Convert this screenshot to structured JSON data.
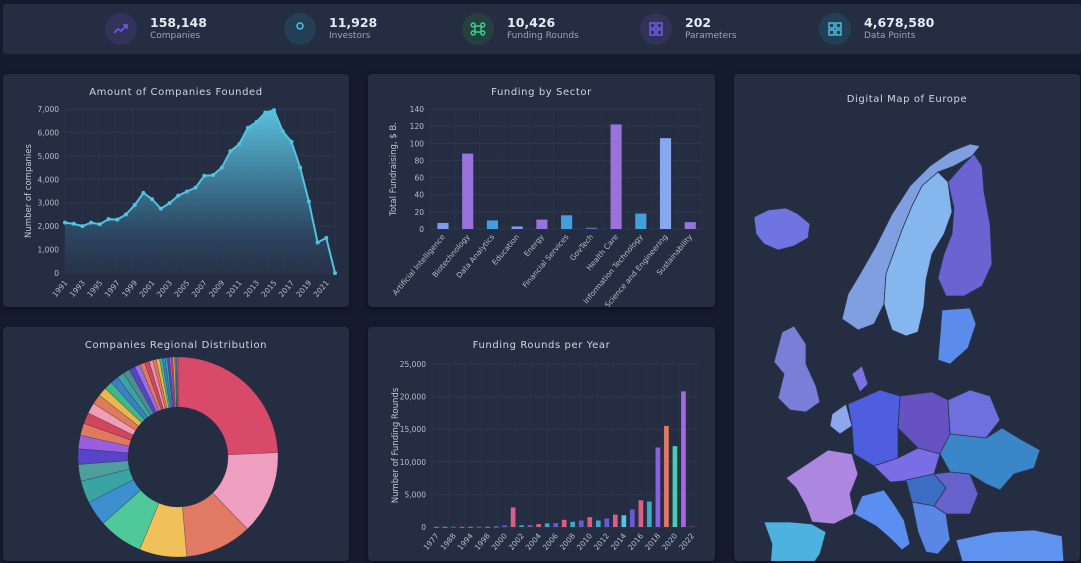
{
  "stats": [
    {
      "value": "158,148",
      "label": "Companies",
      "icon": "trending-up-icon",
      "color": "#6c5ce7",
      "bg": "#33325a"
    },
    {
      "value": "11,928",
      "label": "Investors",
      "icon": "user-icon",
      "color": "#4fc3e0",
      "bg": "#223f55"
    },
    {
      "value": "10,426",
      "label": "Funding Rounds",
      "icon": "command-icon",
      "color": "#3ecf8e",
      "bg": "#23413e"
    },
    {
      "value": "202",
      "label": "Parameters",
      "icon": "grid-icon",
      "color": "#6c63e8",
      "bg": "#33325a"
    },
    {
      "value": "4,678,580",
      "label": "Data Points",
      "icon": "grid-icon",
      "color": "#4fc3e0",
      "bg": "#223f55"
    }
  ],
  "panels": {
    "founded_title": "Amount of Companies Founded",
    "sector_title": "Funding by Sector",
    "regional_title": "Companies Regional Distribution",
    "rounds_title": "Funding Rounds per Year",
    "map_title": "Digital Map of Europe"
  },
  "chart_data": [
    {
      "type": "area",
      "title": "Amount of Companies Founded",
      "xlabel": "",
      "ylabel": "Number of companies",
      "ylim": [
        0,
        7000
      ],
      "yticks": [
        "0",
        "1,000",
        "2,000",
        "3,000",
        "4,000",
        "5,000",
        "6,000",
        "7,000"
      ],
      "x": [
        1991,
        1992,
        1993,
        1994,
        1995,
        1996,
        1997,
        1998,
        1999,
        2000,
        2001,
        2002,
        2003,
        2004,
        2005,
        2006,
        2007,
        2008,
        2009,
        2010,
        2011,
        2012,
        2013,
        2014,
        2015,
        2016,
        2017,
        2018,
        2019,
        2020,
        2021,
        2022
      ],
      "xtick_labels": [
        "1991",
        "1993",
        "1995",
        "1997",
        "1999",
        "2001",
        "2003",
        "2005",
        "2007",
        "2009",
        "2011",
        "2013",
        "2015",
        "2017",
        "2019",
        "2021"
      ],
      "values": [
        2150,
        2100,
        2000,
        2150,
        2080,
        2300,
        2280,
        2500,
        2900,
        3420,
        3150,
        2750,
        2980,
        3300,
        3480,
        3650,
        4150,
        4180,
        4500,
        5200,
        5500,
        6200,
        6450,
        6850,
        6950,
        6050,
        5600,
        4500,
        3050,
        1300,
        1500,
        0
      ],
      "color": "#4fc3e0"
    },
    {
      "type": "bar",
      "title": "Funding by Sector",
      "xlabel": "",
      "ylabel": "Total Fundraising, $ B.",
      "ylim": [
        0,
        140
      ],
      "yticks": [
        "0",
        "20",
        "40",
        "60",
        "80",
        "100",
        "120",
        "140"
      ],
      "categories": [
        "Artificial Intelligence",
        "Biotechnology",
        "Data Analytics",
        "Education",
        "Energy",
        "Financial Services",
        "GovTech",
        "Health Care",
        "Information Technology",
        "Science and Engineering",
        "Sustainability"
      ],
      "values": [
        7,
        88,
        10,
        3,
        11,
        16,
        1.5,
        122,
        18,
        106,
        8
      ],
      "colors": [
        "#7e9cf0",
        "#9a72dc",
        "#3fa0dd",
        "#7e9cf0",
        "#9a72dc",
        "#3fa0dd",
        "#5b6fb0",
        "#9a72dc",
        "#3fa0dd",
        "#86a8f0",
        "#9a72dc"
      ]
    },
    {
      "type": "pie",
      "title": "Companies Regional Distribution",
      "donut": true,
      "values": [
        27,
        15,
        12,
        8.5,
        8,
        4.5,
        4,
        3,
        2.8,
        2.4,
        2.2,
        2,
        1.9,
        1.8,
        1.6,
        1.5,
        1.4,
        1.3,
        1.2,
        1.1,
        1,
        0.9,
        0.8,
        0.7,
        0.6,
        0.6,
        0.5,
        0.5,
        0.4,
        0.4,
        0.3,
        0.3,
        0.3,
        0.2,
        0.2,
        0.2
      ],
      "colors": [
        "#d9496a",
        "#ee9fc0",
        "#e07a64",
        "#f0c05a",
        "#4fc99a",
        "#3d8fd0",
        "#3aa3a3",
        "#4f9e9c",
        "#5646c7",
        "#9a5ee0",
        "#e07a5e",
        "#d3455f",
        "#ee9fb6",
        "#df7a5a",
        "#e8b84c",
        "#3db88b",
        "#3d7fc7",
        "#3aa3a3",
        "#4f8e8c",
        "#5646c7",
        "#9a6ee0",
        "#e07a5e",
        "#d3455f",
        "#e68fb0",
        "#df7a5a",
        "#e8b84c",
        "#3db88b",
        "#3d7fc7",
        "#3aa3a3",
        "#5646c7",
        "#9a6ee0",
        "#d3455f",
        "#e8b84c",
        "#3db88b",
        "#3d7fc7",
        "#9a6ee0"
      ]
    },
    {
      "type": "bar",
      "title": "Funding Rounds per Year",
      "xlabel": "",
      "ylabel": "Number of Funding Rounds",
      "ylim": [
        0,
        25000
      ],
      "yticks": [
        "0",
        "5,000",
        "10,000",
        "15,000",
        "20,000",
        "25,000"
      ],
      "categories": [
        "1977",
        "1986",
        "1988",
        "1990",
        "1994",
        "1996",
        "1998",
        "1999",
        "2000",
        "2001",
        "2002",
        "2003",
        "2004",
        "2005",
        "2006",
        "2007",
        "2008",
        "2009",
        "2010",
        "2011",
        "2012",
        "2013",
        "2014",
        "2015",
        "2016",
        "2017",
        "2018",
        "2019",
        "2020",
        "2021",
        "2022"
      ],
      "xtick_labels": [
        "1977",
        "1988",
        "1994",
        "1998",
        "2000",
        "2002",
        "2004",
        "2006",
        "2008",
        "2010",
        "2012",
        "2014",
        "2016",
        "2018",
        "2020",
        "2022"
      ],
      "values": [
        30,
        30,
        30,
        30,
        30,
        30,
        30,
        80,
        250,
        3000,
        250,
        300,
        450,
        550,
        600,
        1100,
        800,
        1000,
        1500,
        1000,
        1300,
        1900,
        1800,
        2700,
        4100,
        3900,
        12200,
        15500,
        12400,
        20800,
        150
      ],
      "colors": [
        "#d95f86",
        "#3fa8c8",
        "#6a58d6",
        "#d95f86",
        "#3fa8c8",
        "#6a58d6",
        "#d95f86",
        "#3fa8c8",
        "#6a58d6",
        "#d95f86",
        "#3fa8c8",
        "#6a58d6",
        "#d95f86",
        "#3fa8c8",
        "#6a58d6",
        "#d95f86",
        "#3fa8c8",
        "#6a58d6",
        "#d95f86",
        "#3fa8c8",
        "#6a58d6",
        "#d95f86",
        "#4fc8e0",
        "#6a58d6",
        "#d95f86",
        "#3fa8c8",
        "#8a5ee0",
        "#e07a64",
        "#4fc9b0",
        "#a468e0",
        "#6a3a5a"
      ]
    }
  ]
}
